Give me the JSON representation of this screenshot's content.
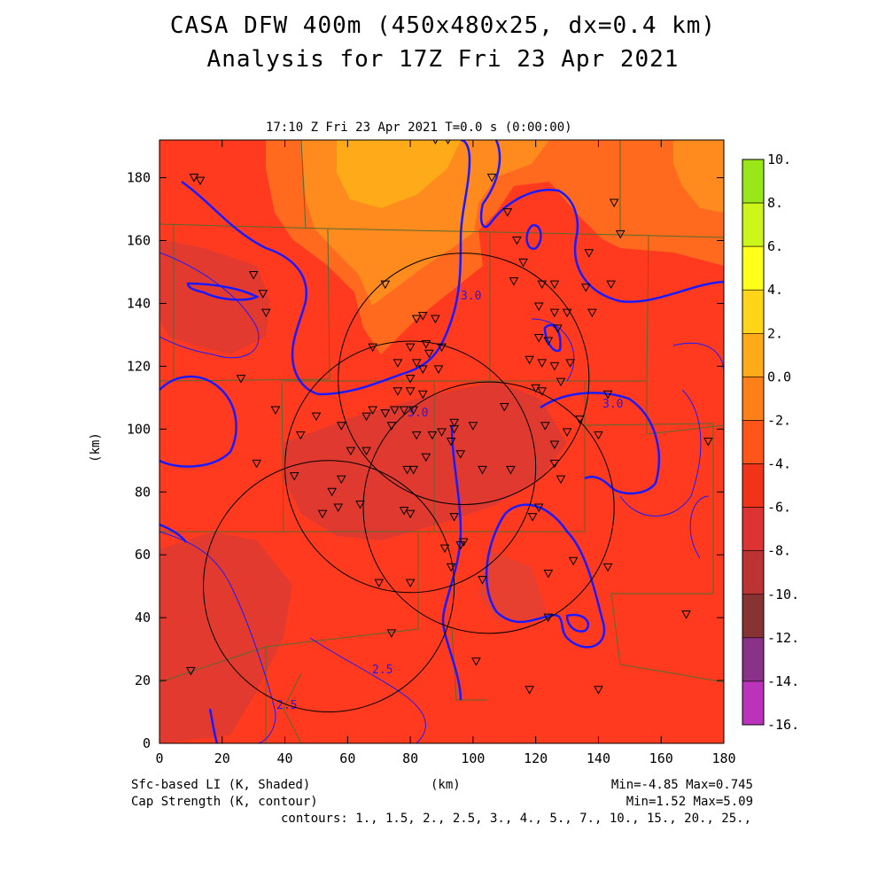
{
  "header": {
    "title_line1": "CASA DFW 400m (450x480x25, dx=0.4 km)",
    "title_line2": "Analysis for 17Z Fri 23 Apr 2021",
    "time_label": "17:10 Z Fri 23 Apr 2021   T=0.0 s (0:00:00)"
  },
  "axes": {
    "x_label": "(km)",
    "y_label": "(km)",
    "x_ticks": [
      "0",
      "20",
      "40",
      "60",
      "80",
      "100",
      "120",
      "140",
      "160",
      "180"
    ],
    "y_ticks": [
      "0",
      "20",
      "40",
      "60",
      "80",
      "100",
      "120",
      "140",
      "160",
      "180"
    ]
  },
  "colorbar": {
    "labels": [
      "10.",
      "8.",
      "6.",
      "4.",
      "2.",
      "0.0",
      "-2.",
      "-4.",
      "-6.",
      "-8.",
      "-10.",
      "-12.",
      "-14.",
      "-16."
    ],
    "colors": [
      "#99e619",
      "#ccf519",
      "#ffff19",
      "#ffd519",
      "#ffaa19",
      "#ff8019",
      "#ff5519",
      "#f03319",
      "#dd3333",
      "#bb3333",
      "#883333",
      "#883388",
      "#bb33bb",
      "#dd44dd"
    ]
  },
  "legend": {
    "shaded": "Sfc-based LI (K, Shaded)",
    "contour": "Cap Strength (K, contour)",
    "x_unit": "(km)",
    "shaded_range": "Min=-4.85 Max=0.745",
    "contour_range": "Min=1.52 Max=5.09",
    "contours": "contours: 1., 1.5, 2., 2.5, 3., 4., 5., 7., 10., 15., 20., 25.,"
  },
  "contour_labels": [
    "3.0",
    "3.0",
    "3.0",
    "2.5",
    "2.5"
  ],
  "colors": {
    "background_field": "#ff3a1e",
    "warm_field": "#ff8a1e",
    "cap_contour": "#1a1aff",
    "county_lines": "#556b2f",
    "radar_rings": "#000000"
  },
  "radar_rings": [
    {
      "cx": 97,
      "cy": 116,
      "r_km": 40
    },
    {
      "cx": 80,
      "cy": 88,
      "r_km": 40
    },
    {
      "cx": 105,
      "cy": 75,
      "r_km": 40
    },
    {
      "cx": 54,
      "cy": 50,
      "r_km": 40
    }
  ],
  "stations": [
    [
      11,
      180
    ],
    [
      13,
      179
    ],
    [
      30,
      149
    ],
    [
      33,
      143
    ],
    [
      34,
      137
    ],
    [
      26,
      116
    ],
    [
      31,
      89
    ],
    [
      37,
      106
    ],
    [
      43,
      85
    ],
    [
      45,
      98
    ],
    [
      50,
      104
    ],
    [
      52,
      73
    ],
    [
      55,
      80
    ],
    [
      58,
      84
    ],
    [
      57,
      75
    ],
    [
      64,
      76
    ],
    [
      66,
      104
    ],
    [
      68,
      106
    ],
    [
      72,
      105
    ],
    [
      75,
      106
    ],
    [
      68,
      126
    ],
    [
      72,
      146
    ],
    [
      82,
      135
    ],
    [
      84,
      136
    ],
    [
      88,
      135
    ],
    [
      85,
      127
    ],
    [
      80,
      126
    ],
    [
      76,
      121
    ],
    [
      82,
      121
    ],
    [
      86,
      124
    ],
    [
      90,
      126
    ],
    [
      89,
      119
    ],
    [
      84,
      119
    ],
    [
      80,
      116
    ],
    [
      76,
      112
    ],
    [
      80,
      112
    ],
    [
      84,
      111
    ],
    [
      78,
      106
    ],
    [
      81,
      106
    ],
    [
      74,
      101
    ],
    [
      82,
      98
    ],
    [
      87,
      98
    ],
    [
      90,
      99
    ],
    [
      94,
      102
    ],
    [
      94,
      100
    ],
    [
      93,
      96
    ],
    [
      79,
      87
    ],
    [
      81,
      87
    ],
    [
      85,
      91
    ],
    [
      78,
      74
    ],
    [
      80,
      73
    ],
    [
      91,
      62
    ],
    [
      94,
      72
    ],
    [
      96,
      63
    ],
    [
      97,
      64
    ],
    [
      93,
      56
    ],
    [
      80,
      51
    ],
    [
      70,
      51
    ],
    [
      74,
      35
    ],
    [
      88,
      192
    ],
    [
      92,
      192
    ],
    [
      106,
      180
    ],
    [
      111,
      169
    ],
    [
      114,
      160
    ],
    [
      116,
      153
    ],
    [
      113,
      147
    ],
    [
      122,
      146
    ],
    [
      126,
      146
    ],
    [
      121,
      139
    ],
    [
      126,
      137
    ],
    [
      130,
      137
    ],
    [
      127,
      132
    ],
    [
      124,
      128
    ],
    [
      121,
      129
    ],
    [
      118,
      122
    ],
    [
      122,
      121
    ],
    [
      126,
      120
    ],
    [
      131,
      121
    ],
    [
      128,
      115
    ],
    [
      120,
      113
    ],
    [
      122,
      112
    ],
    [
      110,
      107
    ],
    [
      123,
      101
    ],
    [
      126,
      95
    ],
    [
      130,
      99
    ],
    [
      134,
      103
    ],
    [
      126,
      89
    ],
    [
      128,
      84
    ],
    [
      112,
      87
    ],
    [
      103,
      87
    ],
    [
      119,
      72
    ],
    [
      121,
      75
    ],
    [
      124,
      54
    ],
    [
      132,
      58
    ],
    [
      143,
      111
    ],
    [
      140,
      98
    ],
    [
      144,
      146
    ],
    [
      136,
      145
    ],
    [
      138,
      137
    ],
    [
      147,
      162
    ],
    [
      145,
      172
    ],
    [
      137,
      156
    ],
    [
      143,
      56
    ],
    [
      103,
      52
    ],
    [
      101,
      26
    ],
    [
      118,
      17
    ],
    [
      140,
      17
    ],
    [
      124,
      40
    ],
    [
      168,
      41
    ],
    [
      175,
      96
    ],
    [
      10,
      23
    ],
    [
      96,
      92
    ],
    [
      100,
      101
    ],
    [
      61,
      93
    ],
    [
      66,
      93
    ],
    [
      58,
      101
    ]
  ]
}
